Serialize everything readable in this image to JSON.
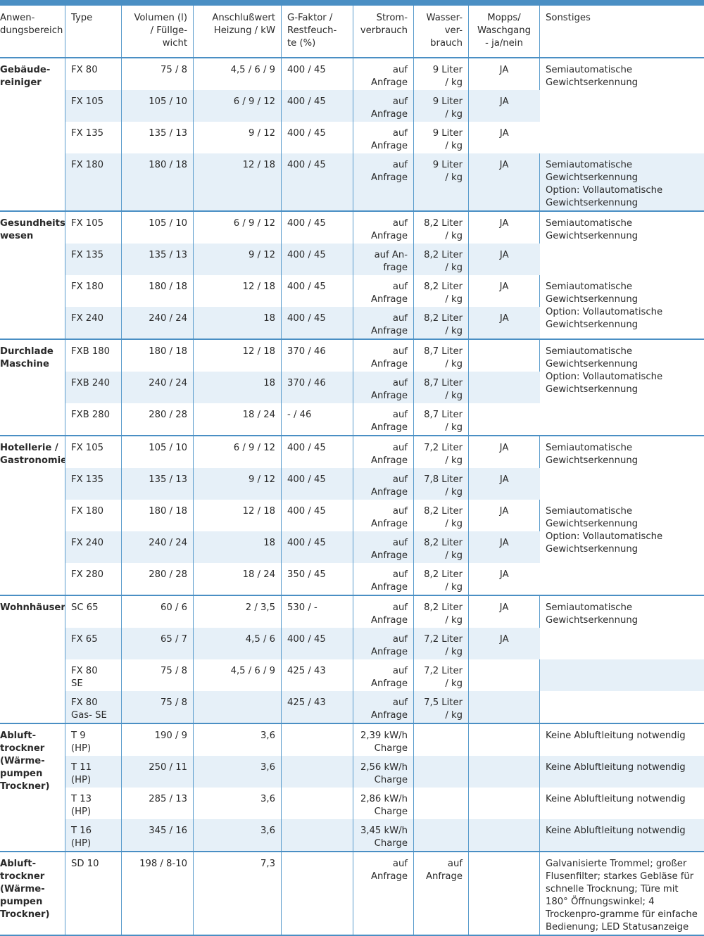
{
  "headers": [
    "Anwen-\ndungsbereich",
    "Type",
    "Volumen (l)\n/ Füllge-\nwicht",
    "Anschlußwert\nHeizung / kW",
    "G-Faktor /\nRestfeuch-\nte (%)",
    "Strom-\nverbrauch",
    "Wasser-\nver-\nbrauch",
    "Mopps/\nWaschgang\n- ja/nein",
    "Sonstiges"
  ],
  "rows": [
    {
      "cat": "Gebäude-\nreiniger",
      "type": "FX 80",
      "vol": "75 / 8",
      "heat": "4,5 / 6 / 9",
      "g": "400 / 45",
      "strom": "auf\nAnfrage",
      "wasser": "9 Liter\n/ kg",
      "mopps": "JA",
      "sonst": "Semiautomatische\nGewichtserkennung"
    },
    {
      "cat": "",
      "type": "FX 105",
      "vol": "105 / 10",
      "heat": "6 / 9 / 12",
      "g": "400 / 45",
      "strom": "auf\nAnfrage",
      "wasser": "9 Liter\n/ kg",
      "mopps": "JA",
      "sonst": ""
    },
    {
      "cat": "",
      "type": "FX 135",
      "vol": "135 / 13",
      "heat": "9 / 12",
      "g": "400 / 45",
      "strom": "auf\nAnfrage",
      "wasser": "9 Liter\n/ kg",
      "mopps": "JA",
      "sonst": ""
    },
    {
      "cat": "",
      "type": "FX 180",
      "vol": "180 / 18",
      "heat": "12 / 18",
      "g": "400 / 45",
      "strom": "auf\nAnfrage",
      "wasser": "9 Liter\n/ kg",
      "mopps": "JA",
      "sonst": "Semiautomatische\nGewichtserkennung\nOption: Vollautomatische\nGewichtserkennung"
    },
    {
      "cat": "Gesundheits-\nwesen",
      "type": "FX 105",
      "vol": "105 / 10",
      "heat": "6 / 9 / 12",
      "g": "400 / 45",
      "strom": "auf\nAnfrage",
      "wasser": "8,2 Liter\n/ kg",
      "mopps": "JA",
      "sonst": "Semiautomatische\nGewichtserkennung"
    },
    {
      "cat": "",
      "type": "FX 135",
      "vol": "135 / 13",
      "heat": "9 / 12",
      "g": "400 / 45",
      "strom": "auf An-\nfrage",
      "wasser": "8,2 Liter\n/ kg",
      "mopps": "JA",
      "sonst": ""
    },
    {
      "cat": "",
      "type": "FX 180",
      "vol": "180 / 18",
      "heat": "12 / 18",
      "g": "400 / 45",
      "strom": "auf\nAnfrage",
      "wasser": "8,2 Liter\n/ kg",
      "mopps": "JA",
      "sonst": "Semiautomatische\nGewichtserkennung\nOption: Vollautomatische\nGewichtserkennung"
    },
    {
      "cat": "",
      "type": "FX 240",
      "vol": "240 / 24",
      "heat": "18",
      "g": "400 / 45",
      "strom": "auf\nAnfrage",
      "wasser": "8,2 Liter\n/ kg",
      "mopps": "JA",
      "sonst": ""
    },
    {
      "cat": "Durchlade\nMaschine",
      "type": "FXB 180",
      "vol": "180 / 18",
      "heat": "12 / 18",
      "g": "370 / 46",
      "strom": "auf\nAnfrage",
      "wasser": "8,7 Liter\n/ kg",
      "mopps": "",
      "sonst": "Semiautomatische\nGewichtserkennung\nOption: Vollautomatische\nGewichtserkennung"
    },
    {
      "cat": "",
      "type": "FXB 240",
      "vol": "240 / 24",
      "heat": "18",
      "g": "370 / 46",
      "strom": "auf\nAnfrage",
      "wasser": "8,7 Liter\n/ kg",
      "mopps": "",
      "sonst": ""
    },
    {
      "cat": "",
      "type": "FXB 280",
      "vol": "280 / 28",
      "heat": "18 / 24",
      "g": "- / 46",
      "strom": "auf\nAnfrage",
      "wasser": "8,7 Liter\n/ kg",
      "mopps": "",
      "sonst": ""
    },
    {
      "cat": "Hotellerie /\nGastronomie",
      "type": "FX 105",
      "vol": "105 / 10",
      "heat": "6 / 9 / 12",
      "g": "400 / 45",
      "strom": "auf\nAnfrage",
      "wasser": "7,2 Liter\n/ kg",
      "mopps": "JA",
      "sonst": "Semiautomatische\nGewichtserkennung"
    },
    {
      "cat": "",
      "type": "FX 135",
      "vol": "135 / 13",
      "heat": "9 / 12",
      "g": "400 / 45",
      "strom": "auf\nAnfrage",
      "wasser": "7,8 Liter\n/ kg",
      "mopps": "JA",
      "sonst": ""
    },
    {
      "cat": "",
      "type": "FX 180",
      "vol": "180 / 18",
      "heat": "12 / 18",
      "g": "400 / 45",
      "strom": "auf\nAnfrage",
      "wasser": "8,2 Liter\n/ kg",
      "mopps": "JA",
      "sonst": "Semiautomatische\nGewichtserkennung\nOption: Vollautomatische\nGewichtserkennung"
    },
    {
      "cat": "",
      "type": "FX 240",
      "vol": "240 / 24",
      "heat": "18",
      "g": "400 / 45",
      "strom": "auf\nAnfrage",
      "wasser": "8,2 Liter\n/ kg",
      "mopps": "JA",
      "sonst": ""
    },
    {
      "cat": "",
      "type": "FX 280",
      "vol": "280 / 28",
      "heat": "18 / 24",
      "g": "350 / 45",
      "strom": "auf\nAnfrage",
      "wasser": "8,2 Liter\n/ kg",
      "mopps": "JA",
      "sonst": ""
    },
    {
      "cat": "Wohnhäuser",
      "type": "SC 65",
      "vol": "60 / 6",
      "heat": "2 / 3,5",
      "g": "530 / -",
      "strom": "auf\nAnfrage",
      "wasser": "8,2 Liter\n/ kg",
      "mopps": "JA",
      "sonst": "Semiautomatische\nGewichtserkennung"
    },
    {
      "cat": "",
      "type": "FX 65",
      "vol": "65 / 7",
      "heat": "4,5 / 6",
      "g": "400 / 45",
      "strom": "auf\nAnfrage",
      "wasser": "7,2 Liter\n/ kg",
      "mopps": "JA",
      "sonst": ""
    },
    {
      "cat": "",
      "type": "FX 80\nSE",
      "vol": "75 / 8",
      "heat": "4,5 / 6 / 9",
      "g": "425 / 43",
      "strom": "auf\nAnfrage",
      "wasser": "7,2 Liter\n/ kg",
      "mopps": "",
      "sonst": ""
    },
    {
      "cat": "",
      "type": "FX 80\nGas- SE",
      "vol": "75 / 8",
      "heat": "",
      "g": "425 / 43",
      "strom": "auf\nAnfrage",
      "wasser": "7,5 Liter\n/ kg",
      "mopps": "",
      "sonst": ""
    },
    {
      "cat": "Abluft-\ntrockner\n(Wärme-\npumpen\nTrockner)",
      "type": "T 9\n(HP)",
      "vol": "190 / 9",
      "heat": "3,6",
      "g": "",
      "strom": "2,39 kW/h\nCharge",
      "wasser": "",
      "mopps": "",
      "sonst": "Keine Abluftleitung notwendig"
    },
    {
      "cat": "",
      "type": "T 11\n(HP)",
      "vol": "250 / 11",
      "heat": "3,6",
      "g": "",
      "strom": "2,56 kW/h\nCharge",
      "wasser": "",
      "mopps": "",
      "sonst": "Keine Abluftleitung notwendig"
    },
    {
      "cat": "",
      "type": "T 13\n(HP)",
      "vol": "285 / 13",
      "heat": "3,6",
      "g": "",
      "strom": "2,86 kW/h\nCharge",
      "wasser": "",
      "mopps": "",
      "sonst": "Keine Abluftleitung notwendig"
    },
    {
      "cat": "",
      "type": "T 16\n(HP)",
      "vol": "345 / 16",
      "heat": "3,6",
      "g": "",
      "strom": "3,45 kW/h\nCharge",
      "wasser": "",
      "mopps": "",
      "sonst": "Keine Abluftleitung notwendig"
    },
    {
      "cat": "Abluft-\ntrockner\n(Wärme-\npumpen\nTrockner)",
      "type": "SD 10",
      "vol": "198 / 8-10",
      "heat": "7,3",
      "g": "",
      "strom": "auf\nAnfrage",
      "wasser": "auf\nAnfrage",
      "mopps": "",
      "sonst": "Galvanisierte Trommel; großer Flusenfilter; starkes Gebläse für schnelle Trocknung; Türe mit 180° Öffnungswinkel; 4 Trockenpro-gramme für einfache Bedienung; LED Statusanzeige"
    }
  ]
}
